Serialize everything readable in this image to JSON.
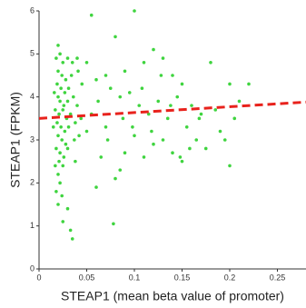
{
  "chart_data": {
    "type": "scatter",
    "xlabel": "STEAP1 (mean beta value of promoter)",
    "ylabel": "STEAP1 (FPKM)",
    "color": "#3fd43f",
    "x": [
      0.02,
      0.022,
      0.018,
      0.025,
      0.03,
      0.035,
      0.04,
      0.02,
      0.024,
      0.028,
      0.019,
      0.023,
      0.027,
      0.031,
      0.036,
      0.02,
      0.022,
      0.026,
      0.03,
      0.017,
      0.021,
      0.025,
      0.029,
      0.033,
      0.038,
      0.019,
      0.023,
      0.027,
      0.031,
      0.02,
      0.024,
      0.028,
      0.018,
      0.022,
      0.026,
      0.03,
      0.021,
      0.025,
      0.02,
      0.022,
      0.018,
      0.024,
      0.02,
      0.03,
      0.025,
      0.033,
      0.035,
      0.04,
      0.045,
      0.042,
      0.038,
      0.016,
      0.015,
      0.017,
      0.034,
      0.037,
      0.041,
      0.044,
      0.055,
      0.1,
      0.08,
      0.05,
      0.06,
      0.07,
      0.075,
      0.085,
      0.09,
      0.095,
      0.11,
      0.12,
      0.13,
      0.14,
      0.105,
      0.115,
      0.125,
      0.135,
      0.145,
      0.15,
      0.16,
      0.17,
      0.18,
      0.19,
      0.2,
      0.21,
      0.22,
      0.155,
      0.165,
      0.175,
      0.195,
      0.2,
      0.15,
      0.14,
      0.13,
      0.12,
      0.11,
      0.1,
      0.09,
      0.085,
      0.08,
      0.078,
      0.06,
      0.065,
      0.07,
      0.055,
      0.05,
      0.062,
      0.072,
      0.088,
      0.098,
      0.108,
      0.118,
      0.128,
      0.138,
      0.148,
      0.158,
      0.168,
      0.185,
      0.205
    ],
    "values": [
      5.2,
      5.0,
      4.9,
      4.8,
      4.9,
      4.8,
      4.9,
      4.6,
      4.5,
      4.4,
      4.3,
      4.2,
      4.1,
      4.2,
      4.0,
      4.0,
      3.9,
      3.8,
      3.9,
      3.7,
      3.6,
      3.7,
      3.5,
      3.6,
      3.4,
      3.4,
      3.3,
      3.2,
      3.3,
      3.1,
      3.0,
      2.9,
      2.8,
      2.7,
      2.6,
      2.8,
      2.5,
      2.4,
      2.2,
      2.0,
      1.8,
      1.7,
      1.5,
      1.4,
      1.1,
      0.9,
      0.7,
      3.8,
      4.3,
      3.1,
      2.5,
      4.1,
      3.3,
      2.4,
      4.5,
      3.0,
      4.6,
      3.5,
      5.9,
      6.0,
      5.4,
      4.8,
      4.4,
      4.5,
      4.2,
      4.0,
      4.6,
      4.1,
      4.8,
      5.1,
      4.9,
      4.5,
      3.8,
      3.6,
      3.9,
      3.5,
      4.0,
      4.3,
      3.8,
      3.6,
      4.8,
      3.2,
      4.3,
      3.9,
      4.3,
      3.3,
      3.0,
      2.8,
      3.0,
      2.4,
      2.5,
      2.7,
      3.0,
      2.9,
      2.6,
      3.1,
      2.7,
      2.3,
      2.1,
      1.05,
      1.9,
      2.6,
      3.3,
      3.6,
      3.2,
      3.9,
      3.0,
      3.5,
      3.3,
      4.2,
      3.2,
      4.5,
      3.8,
      2.6,
      2.8,
      3.5,
      3.7,
      3.5
    ],
    "trend": {
      "x": [
        0,
        0.28
      ],
      "y": [
        3.5,
        3.88
      ],
      "color": "#e8221c"
    },
    "xlim": [
      0,
      0.28
    ],
    "xticks": [
      0,
      0.05,
      0.1,
      0.15,
      0.2,
      0.25
    ],
    "ylim": [
      0,
      6
    ],
    "yticks": [
      0,
      1,
      2,
      3,
      4,
      5,
      6
    ]
  }
}
